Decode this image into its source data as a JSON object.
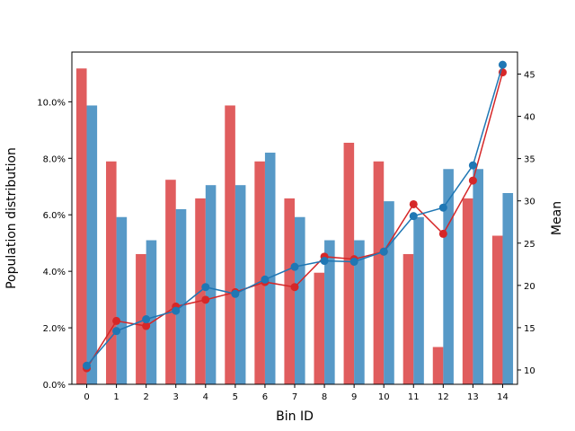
{
  "chart_data": {
    "type": "bar",
    "title": "",
    "xlabel": "Bin ID",
    "ylabel_left": "Population distribution",
    "ylabel_right": "Mean",
    "categories": [
      "0",
      "1",
      "2",
      "3",
      "4",
      "5",
      "6",
      "7",
      "8",
      "9",
      "10",
      "11",
      "12",
      "13",
      "14"
    ],
    "left_axis": {
      "range": [
        0,
        0.1176
      ],
      "ticks": [
        0,
        0.02,
        0.04,
        0.06,
        0.08,
        0.1
      ],
      "tick_labels": [
        "0.0%",
        "2.0%",
        "4.0%",
        "6.0%",
        "8.0%",
        "10.0%"
      ]
    },
    "right_axis": {
      "range": [
        8.3,
        47.6
      ],
      "ticks": [
        10,
        15,
        20,
        25,
        30,
        35,
        40,
        45
      ],
      "tick_labels": [
        "10",
        "15",
        "20",
        "25",
        "30",
        "35",
        "40",
        "45"
      ]
    },
    "bar_series": [
      {
        "color": "#d62728",
        "values": [
          0.1118,
          0.0789,
          0.0461,
          0.0724,
          0.0658,
          0.0987,
          0.0789,
          0.0658,
          0.0395,
          0.0855,
          0.0789,
          0.0461,
          0.0132,
          0.0658,
          0.0526
        ]
      },
      {
        "color": "#1f77b4",
        "values": [
          0.0987,
          0.0592,
          0.051,
          0.062,
          0.0705,
          0.0705,
          0.082,
          0.0592,
          0.051,
          0.051,
          0.0648,
          0.0592,
          0.0762,
          0.0762,
          0.0677
        ]
      }
    ],
    "line_series": [
      {
        "color": "#d62728",
        "values": [
          10.2,
          15.8,
          15.2,
          17.5,
          18.3,
          19.2,
          20.4,
          19.8,
          23.4,
          23.1,
          24.0,
          29.6,
          26.1,
          32.4,
          45.2
        ]
      },
      {
        "color": "#1f77b4",
        "values": [
          10.5,
          14.6,
          16.0,
          17.0,
          19.8,
          19.0,
          20.7,
          22.2,
          22.9,
          22.8,
          24.0,
          28.2,
          29.2,
          34.2,
          46.1
        ]
      }
    ],
    "grid": false,
    "legend": "none"
  }
}
